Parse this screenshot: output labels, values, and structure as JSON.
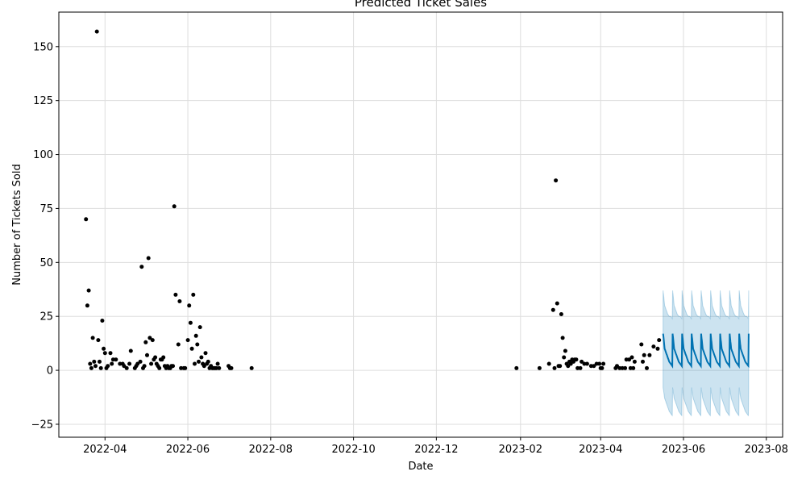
{
  "chart_data": {
    "type": "scatter",
    "title": "Predicted Ticket Sales",
    "xlabel": "Date",
    "ylabel": "Number of Tickets Sold",
    "xlim": [
      "2022-02-26",
      "2023-08-13"
    ],
    "ylim": [
      -31,
      166
    ],
    "grid": true,
    "x_ticks": [
      "2022-04-01",
      "2022-06-01",
      "2022-08-01",
      "2022-10-01",
      "2022-12-01",
      "2023-02-01",
      "2023-04-01",
      "2023-06-01",
      "2023-08-01"
    ],
    "x_tick_labels": [
      "2022-04",
      "2022-06",
      "2022-08",
      "2022-10",
      "2022-12",
      "2023-02",
      "2023-04",
      "2023-06",
      "2023-08"
    ],
    "y_ticks": [
      -25,
      0,
      25,
      50,
      75,
      100,
      125,
      150
    ],
    "colors": {
      "observed": "#000000",
      "forecast": "#0072b2",
      "interval": "#0072b2",
      "grid": "#dddddd"
    },
    "series": [
      {
        "name": "observed",
        "kind": "scatter",
        "points": [
          [
            "2022-03-18",
            70
          ],
          [
            "2022-03-19",
            30
          ],
          [
            "2022-03-20",
            37
          ],
          [
            "2022-03-21",
            3
          ],
          [
            "2022-03-22",
            1
          ],
          [
            "2022-03-23",
            15
          ],
          [
            "2022-03-24",
            4
          ],
          [
            "2022-03-25",
            2
          ],
          [
            "2022-03-26",
            157
          ],
          [
            "2022-03-27",
            14
          ],
          [
            "2022-03-28",
            4
          ],
          [
            "2022-03-29",
            1
          ],
          [
            "2022-03-30",
            23
          ],
          [
            "2022-03-31",
            10
          ],
          [
            "2022-04-01",
            8
          ],
          [
            "2022-04-02",
            1
          ],
          [
            "2022-04-03",
            2
          ],
          [
            "2022-04-05",
            8
          ],
          [
            "2022-04-06",
            3
          ],
          [
            "2022-04-07",
            5
          ],
          [
            "2022-04-09",
            5
          ],
          [
            "2022-04-12",
            3
          ],
          [
            "2022-04-14",
            3
          ],
          [
            "2022-04-15",
            2
          ],
          [
            "2022-04-17",
            1
          ],
          [
            "2022-04-19",
            3
          ],
          [
            "2022-04-20",
            9
          ],
          [
            "2022-04-23",
            1
          ],
          [
            "2022-04-24",
            2
          ],
          [
            "2022-04-25",
            3
          ],
          [
            "2022-04-27",
            4
          ],
          [
            "2022-04-28",
            48
          ],
          [
            "2022-04-29",
            1
          ],
          [
            "2022-04-30",
            2
          ],
          [
            "2022-05-01",
            13
          ],
          [
            "2022-05-02",
            7
          ],
          [
            "2022-05-03",
            52
          ],
          [
            "2022-05-04",
            15
          ],
          [
            "2022-05-05",
            3
          ],
          [
            "2022-05-06",
            14
          ],
          [
            "2022-05-07",
            5
          ],
          [
            "2022-05-08",
            6
          ],
          [
            "2022-05-09",
            3
          ],
          [
            "2022-05-10",
            2
          ],
          [
            "2022-05-11",
            1
          ],
          [
            "2022-05-12",
            5
          ],
          [
            "2022-05-13",
            5
          ],
          [
            "2022-05-14",
            6
          ],
          [
            "2022-05-15",
            2
          ],
          [
            "2022-05-16",
            1
          ],
          [
            "2022-05-17",
            2
          ],
          [
            "2022-05-18",
            1
          ],
          [
            "2022-05-19",
            1
          ],
          [
            "2022-05-20",
            2
          ],
          [
            "2022-05-21",
            2
          ],
          [
            "2022-05-22",
            76
          ],
          [
            "2022-05-23",
            35
          ],
          [
            "2022-05-25",
            12
          ],
          [
            "2022-05-26",
            32
          ],
          [
            "2022-05-27",
            1
          ],
          [
            "2022-05-29",
            1
          ],
          [
            "2022-05-30",
            1
          ],
          [
            "2022-06-01",
            14
          ],
          [
            "2022-06-02",
            30
          ],
          [
            "2022-06-03",
            22
          ],
          [
            "2022-06-04",
            10
          ],
          [
            "2022-06-05",
            35
          ],
          [
            "2022-06-06",
            3
          ],
          [
            "2022-06-07",
            16
          ],
          [
            "2022-06-08",
            12
          ],
          [
            "2022-06-09",
            4
          ],
          [
            "2022-06-10",
            20
          ],
          [
            "2022-06-11",
            6
          ],
          [
            "2022-06-12",
            3
          ],
          [
            "2022-06-13",
            2
          ],
          [
            "2022-06-14",
            8
          ],
          [
            "2022-06-15",
            3
          ],
          [
            "2022-06-16",
            4
          ],
          [
            "2022-06-17",
            1
          ],
          [
            "2022-06-18",
            2
          ],
          [
            "2022-06-19",
            1
          ],
          [
            "2022-06-20",
            1
          ],
          [
            "2022-06-21",
            1
          ],
          [
            "2022-06-22",
            1
          ],
          [
            "2022-06-23",
            3
          ],
          [
            "2022-06-24",
            1
          ],
          [
            "2022-07-01",
            2
          ],
          [
            "2022-07-02",
            1
          ],
          [
            "2022-07-03",
            1
          ],
          [
            "2022-07-18",
            1
          ],
          [
            "2023-01-29",
            1
          ],
          [
            "2023-02-15",
            1
          ],
          [
            "2023-02-22",
            3
          ],
          [
            "2023-02-25",
            28
          ],
          [
            "2023-02-26",
            1
          ],
          [
            "2023-02-27",
            88
          ],
          [
            "2023-02-28",
            31
          ],
          [
            "2023-03-01",
            2
          ],
          [
            "2023-03-02",
            2
          ],
          [
            "2023-03-03",
            26
          ],
          [
            "2023-03-04",
            15
          ],
          [
            "2023-03-05",
            6
          ],
          [
            "2023-03-06",
            9
          ],
          [
            "2023-03-07",
            3
          ],
          [
            "2023-03-08",
            2
          ],
          [
            "2023-03-09",
            4
          ],
          [
            "2023-03-10",
            3
          ],
          [
            "2023-03-11",
            5
          ],
          [
            "2023-03-12",
            4
          ],
          [
            "2023-03-13",
            5
          ],
          [
            "2023-03-14",
            5
          ],
          [
            "2023-03-15",
            1
          ],
          [
            "2023-03-17",
            1
          ],
          [
            "2023-03-18",
            4
          ],
          [
            "2023-03-20",
            3
          ],
          [
            "2023-03-22",
            3
          ],
          [
            "2023-03-25",
            2
          ],
          [
            "2023-03-27",
            2
          ],
          [
            "2023-03-29",
            3
          ],
          [
            "2023-03-31",
            3
          ],
          [
            "2023-04-01",
            1
          ],
          [
            "2023-04-02",
            1
          ],
          [
            "2023-04-03",
            3
          ],
          [
            "2023-04-12",
            1
          ],
          [
            "2023-04-13",
            2
          ],
          [
            "2023-04-15",
            1
          ],
          [
            "2023-04-17",
            1
          ],
          [
            "2023-04-19",
            1
          ],
          [
            "2023-04-20",
            5
          ],
          [
            "2023-04-22",
            5
          ],
          [
            "2023-04-23",
            1
          ],
          [
            "2023-04-24",
            6
          ],
          [
            "2023-04-25",
            1
          ],
          [
            "2023-04-26",
            4
          ],
          [
            "2023-05-01",
            12
          ],
          [
            "2023-05-02",
            4
          ],
          [
            "2023-05-03",
            7
          ],
          [
            "2023-05-05",
            1
          ],
          [
            "2023-05-07",
            7
          ],
          [
            "2023-05-10",
            11
          ],
          [
            "2023-05-13",
            10
          ],
          [
            "2023-05-14",
            14
          ]
        ]
      },
      {
        "name": "forecast",
        "kind": "line",
        "start": "2023-05-17",
        "end": "2023-07-19",
        "weekly_profile_yhat": [
          17,
          10,
          8,
          6,
          4,
          3,
          2
        ],
        "weekly_profile_upper": [
          37,
          30,
          28,
          26,
          25,
          25,
          24
        ],
        "weekly_profile_lower": [
          -8,
          -13,
          -15,
          -17,
          -19,
          -20,
          -21
        ]
      }
    ]
  }
}
